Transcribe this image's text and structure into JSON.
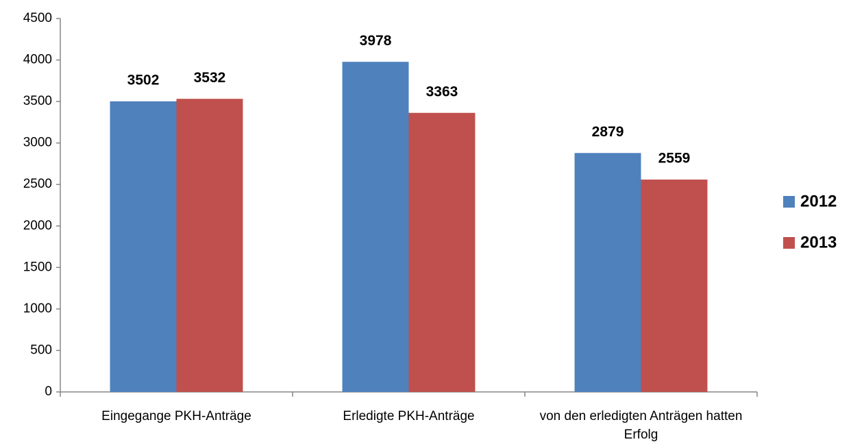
{
  "chart_data": {
    "type": "bar",
    "categories": [
      "Eingegange PKH-Anträge",
      "Erledigte PKH-Anträge",
      "von den erledigten Anträgen hatten Erfolg"
    ],
    "series": [
      {
        "name": "2012",
        "color": "#4f81bd",
        "values": [
          3502,
          3978,
          2879
        ]
      },
      {
        "name": "2013",
        "color": "#c0504d",
        "values": [
          3532,
          3363,
          2559
        ]
      }
    ],
    "ylim": [
      0,
      4500
    ],
    "yticks": [
      0,
      500,
      1000,
      1500,
      2000,
      2500,
      3000,
      3500,
      4000,
      4500
    ],
    "grid": false,
    "legend": "right"
  }
}
